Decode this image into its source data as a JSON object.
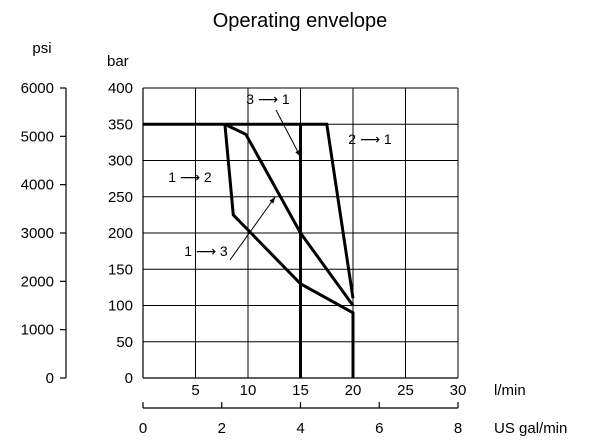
{
  "chart_data": {
    "type": "line",
    "title": "Operating envelope",
    "colors": {
      "ink": "#000000",
      "grid": "#000000",
      "background": "#ffffff"
    },
    "grid": true,
    "x_axis": {
      "label": "l/min",
      "range": [
        0,
        30
      ],
      "ticks": [
        5,
        10,
        15,
        20,
        25,
        30
      ]
    },
    "y_axis": {
      "label": "bar",
      "range": [
        0,
        400
      ],
      "ticks": [
        0,
        50,
        100,
        150,
        200,
        250,
        300,
        350,
        400
      ]
    },
    "secondary_y_axis": {
      "label": "psi",
      "range": [
        0,
        6000
      ],
      "ticks": [
        0,
        1000,
        2000,
        3000,
        4000,
        5000,
        6000
      ]
    },
    "secondary_x_axis": {
      "label": "US gal/min",
      "range": [
        0,
        8
      ],
      "ticks": [
        0,
        2,
        4,
        6,
        8
      ]
    },
    "series": [
      {
        "name": "",
        "points": [
          [
            0,
            350
          ],
          [
            17.5,
            350
          ],
          [
            20,
            110
          ]
        ]
      },
      {
        "name": "",
        "points": [
          [
            7.8,
            350
          ],
          [
            8.6,
            225
          ],
          [
            15,
            130
          ],
          [
            20,
            90
          ],
          [
            20,
            0
          ]
        ]
      },
      {
        "name": "",
        "points": [
          [
            7.8,
            350
          ],
          [
            9.8,
            336
          ],
          [
            15,
            200
          ],
          [
            20,
            100
          ]
        ]
      },
      {
        "name": "",
        "points": [
          [
            15,
            350
          ],
          [
            15,
            0
          ]
        ]
      }
    ],
    "annotations": [
      {
        "from": "3",
        "to": "1",
        "text": "3 ⟶ 1",
        "arrow_to": [
          15,
          305
        ]
      },
      {
        "from": "2",
        "to": "1",
        "text": "2 ⟶ 1",
        "arrow_to": null
      },
      {
        "from": "1",
        "to": "2",
        "text": "1 ⟶ 2",
        "arrow_to": null
      },
      {
        "from": "1",
        "to": "3",
        "text": "1 ⟶ 3",
        "arrow_to": [
          12.6,
          250
        ]
      }
    ]
  }
}
